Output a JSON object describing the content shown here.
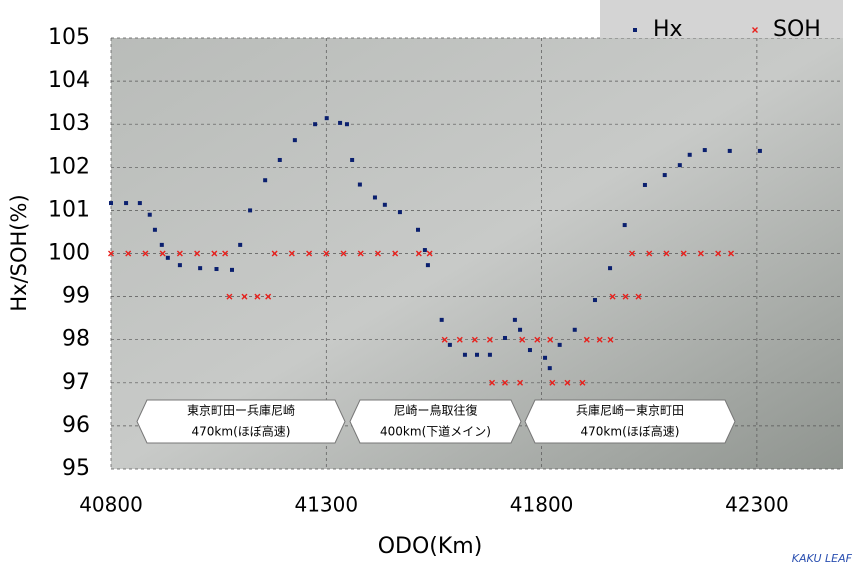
{
  "chart_data": {
    "type": "scatter",
    "xlabel": "ODO(Km)",
    "ylabel": "Hx/SOH(%)",
    "xlim": [
      40800,
      42500
    ],
    "xticks": [
      40800,
      41300,
      41800,
      42300
    ],
    "ylim": [
      95,
      105
    ],
    "yticks": [
      95,
      96,
      97,
      98,
      99,
      100,
      101,
      102,
      103,
      104,
      105
    ],
    "grid": true,
    "legend": "top-right",
    "credit": "KAKU LEAF",
    "annotations": [
      {
        "lines": [
          "東京町田ー兵庫尼崎",
          "470km(ほぼ高速)"
        ]
      },
      {
        "lines": [
          "尼崎ー鳥取往復",
          "400km(下道メイン)"
        ]
      },
      {
        "lines": [
          "兵庫尼崎ー東京町田",
          "470km(ほぼ高速)"
        ]
      }
    ],
    "series": [
      {
        "name": "Hx",
        "color": "#0a1f6e",
        "marker": "square",
        "x": [
          40800,
          40835,
          40867,
          40890,
          40902,
          40918,
          40932,
          40960,
          41007,
          41045,
          41081,
          41100,
          41123,
          41158,
          41192,
          41227,
          41274,
          41301,
          41332,
          41348,
          41360,
          41378,
          41413,
          41436,
          41471,
          41513,
          41529,
          41536,
          41568,
          41587,
          41622,
          41650,
          41680,
          41715,
          41738,
          41750,
          41773,
          41808,
          41819,
          41842,
          41877,
          41924,
          41959,
          41993,
          42040,
          42086,
          42121,
          42144,
          42179,
          42237,
          42307
        ],
        "values": [
          101.17,
          101.17,
          101.17,
          100.9,
          100.55,
          100.2,
          99.9,
          99.73,
          99.66,
          99.64,
          99.62,
          100.2,
          101.0,
          101.7,
          102.17,
          102.63,
          103.0,
          103.14,
          103.03,
          103.0,
          102.17,
          101.6,
          101.3,
          101.13,
          100.96,
          100.55,
          100.08,
          99.73,
          98.46,
          97.88,
          97.65,
          97.65,
          97.65,
          98.04,
          98.46,
          98.23,
          97.76,
          97.58,
          97.34,
          97.88,
          98.23,
          98.92,
          99.66,
          100.66,
          101.59,
          101.82,
          102.05,
          102.29,
          102.4,
          102.38,
          102.38
        ]
      },
      {
        "name": "SOH",
        "color": "#e8201c",
        "marker": "cross",
        "x": [
          40800,
          40840,
          40880,
          40920,
          40960,
          41000,
          41040,
          41065,
          41075,
          41110,
          41140,
          41165,
          41180,
          41220,
          41260,
          41300,
          41340,
          41380,
          41420,
          41460,
          41515,
          41540,
          41575,
          41610,
          41645,
          41680,
          41685,
          41715,
          41750,
          41755,
          41790,
          41820,
          41825,
          41860,
          41895,
          41905,
          41935,
          41960,
          41965,
          41995,
          42025,
          42010,
          42050,
          42090,
          42130,
          42170,
          42210,
          42240
        ],
        "values": [
          100,
          100,
          100,
          100,
          100,
          100,
          100,
          100,
          99,
          99,
          99,
          99,
          100,
          100,
          100,
          100,
          100,
          100,
          100,
          100,
          100,
          100,
          98,
          98,
          98,
          98,
          97,
          97,
          97,
          98,
          98,
          98,
          97,
          97,
          97,
          98,
          98,
          98,
          99,
          99,
          99,
          100,
          100,
          100,
          100,
          100,
          100,
          100
        ]
      }
    ]
  }
}
